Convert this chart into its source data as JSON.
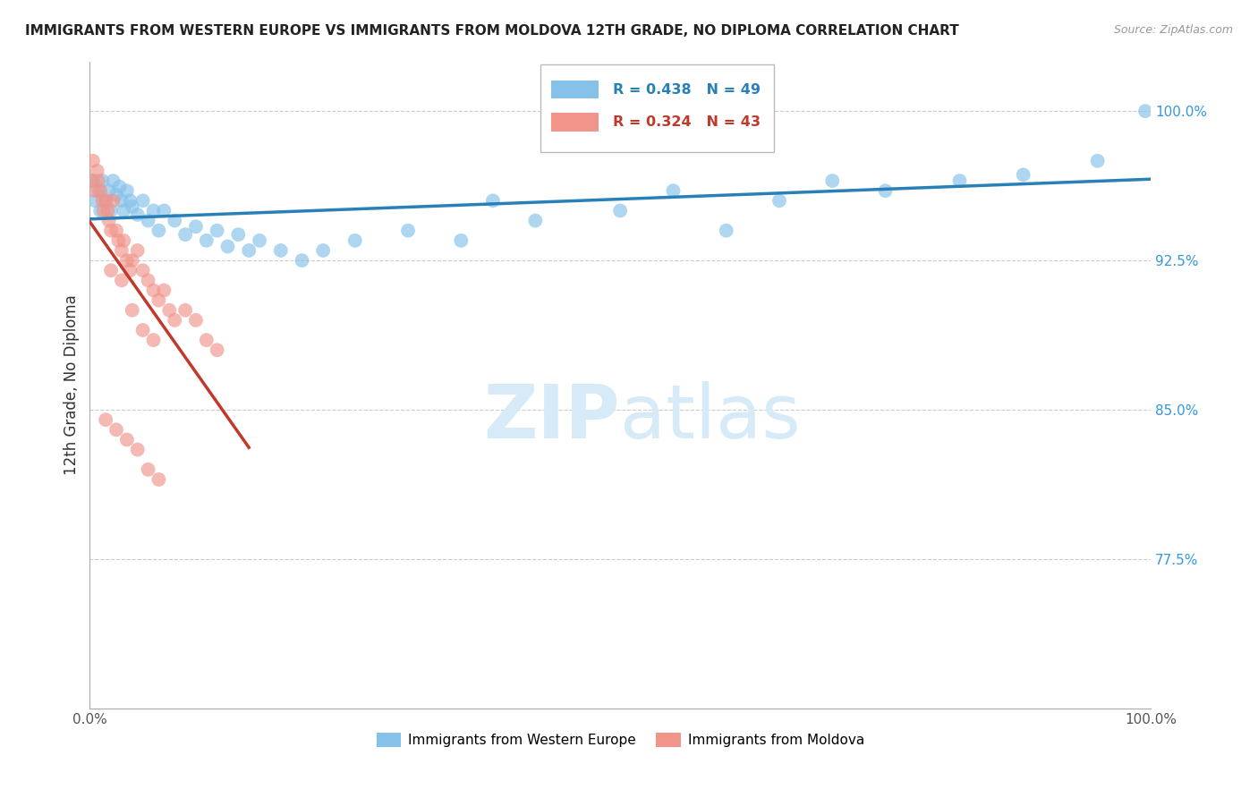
{
  "title": "IMMIGRANTS FROM WESTERN EUROPE VS IMMIGRANTS FROM MOLDOVA 12TH GRADE, NO DIPLOMA CORRELATION CHART",
  "source_text": "Source: ZipAtlas.com",
  "ylabel": "12th Grade, No Diploma",
  "x_min": 0.0,
  "x_max": 100.0,
  "y_min": 70.0,
  "y_max": 102.5,
  "y_ticks": [
    77.5,
    85.0,
    92.5,
    100.0
  ],
  "y_tick_labels": [
    "77.5%",
    "85.0%",
    "92.5%",
    "100.0%"
  ],
  "x_tick_labels": [
    "0.0%",
    "100.0%"
  ],
  "legend_blue_label": "Immigrants from Western Europe",
  "legend_pink_label": "Immigrants from Moldova",
  "blue_R": 0.438,
  "blue_N": 49,
  "pink_R": 0.324,
  "pink_N": 43,
  "blue_color": "#85c1e9",
  "pink_color": "#f1948a",
  "blue_line_color": "#2980b9",
  "pink_line_color": "#c0392b",
  "background_color": "#ffffff",
  "watermark_color": "#d6eaf8",
  "blue_scatter_x": [
    0.3,
    0.5,
    0.8,
    1.0,
    1.2,
    1.5,
    1.8,
    2.0,
    2.2,
    2.5,
    2.8,
    3.0,
    3.2,
    3.5,
    3.8,
    4.0,
    4.5,
    5.0,
    5.5,
    6.0,
    6.5,
    7.0,
    8.0,
    9.0,
    10.0,
    11.0,
    12.0,
    13.0,
    14.0,
    15.0,
    16.0,
    18.0,
    20.0,
    22.0,
    25.0,
    30.0,
    35.0,
    38.0,
    42.0,
    50.0,
    55.0,
    60.0,
    65.0,
    70.0,
    75.0,
    82.0,
    88.0,
    95.0,
    99.5
  ],
  "blue_scatter_y": [
    96.5,
    95.5,
    96.0,
    95.0,
    96.5,
    95.5,
    96.0,
    95.0,
    96.5,
    95.8,
    96.2,
    95.5,
    95.0,
    96.0,
    95.5,
    95.2,
    94.8,
    95.5,
    94.5,
    95.0,
    94.0,
    95.0,
    94.5,
    93.8,
    94.2,
    93.5,
    94.0,
    93.2,
    93.8,
    93.0,
    93.5,
    93.0,
    92.5,
    93.0,
    93.5,
    94.0,
    93.5,
    95.5,
    94.5,
    95.0,
    96.0,
    94.0,
    95.5,
    96.5,
    96.0,
    96.5,
    96.8,
    97.5,
    100.0
  ],
  "pink_scatter_x": [
    0.2,
    0.3,
    0.5,
    0.7,
    0.8,
    1.0,
    1.2,
    1.3,
    1.5,
    1.7,
    1.8,
    2.0,
    2.2,
    2.5,
    2.7,
    3.0,
    3.2,
    3.5,
    3.8,
    4.0,
    4.5,
    5.0,
    5.5,
    6.0,
    6.5,
    7.0,
    7.5,
    8.0,
    9.0,
    10.0,
    11.0,
    12.0,
    2.0,
    3.0,
    4.0,
    5.0,
    6.0,
    1.5,
    2.5,
    3.5,
    4.5,
    5.5,
    6.5
  ],
  "pink_scatter_y": [
    96.5,
    97.5,
    96.0,
    97.0,
    96.5,
    96.0,
    95.5,
    95.0,
    95.5,
    95.0,
    94.5,
    94.0,
    95.5,
    94.0,
    93.5,
    93.0,
    93.5,
    92.5,
    92.0,
    92.5,
    93.0,
    92.0,
    91.5,
    91.0,
    90.5,
    91.0,
    90.0,
    89.5,
    90.0,
    89.5,
    88.5,
    88.0,
    92.0,
    91.5,
    90.0,
    89.0,
    88.5,
    84.5,
    84.0,
    83.5,
    83.0,
    82.0,
    81.5
  ]
}
